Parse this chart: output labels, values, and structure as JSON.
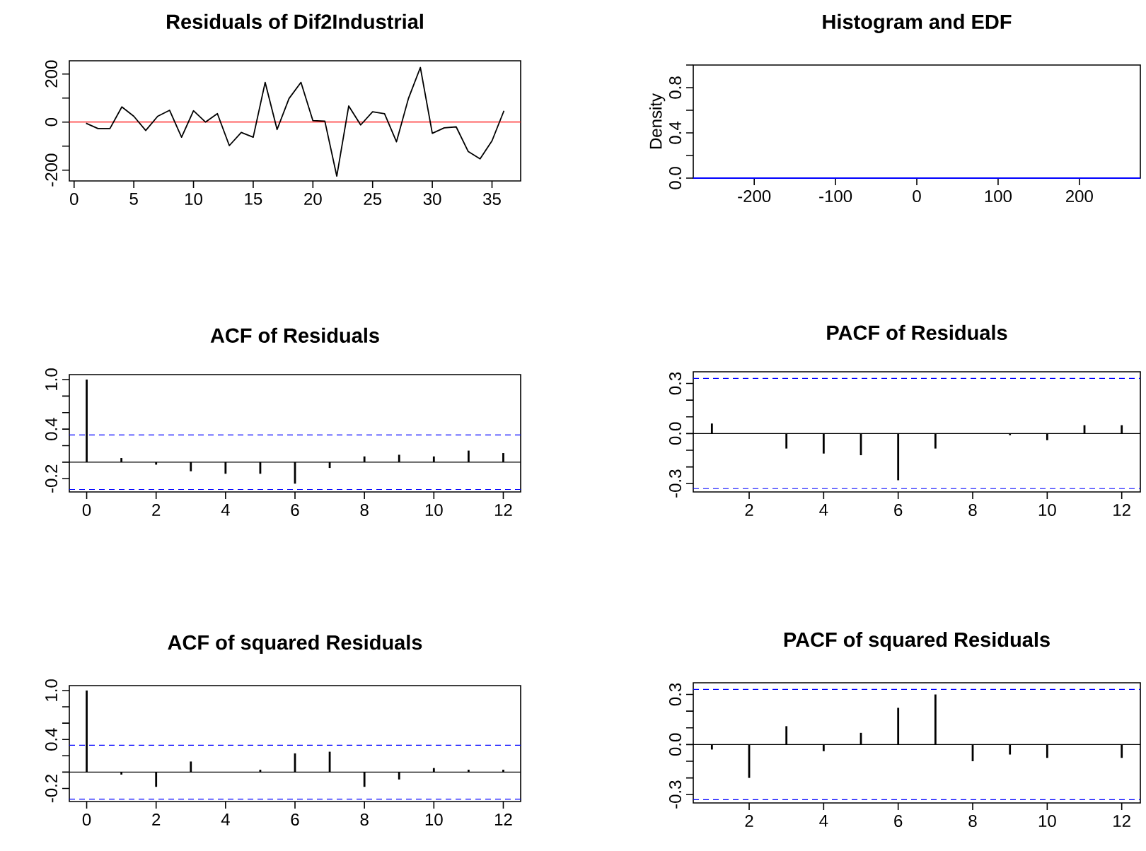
{
  "chart_data": [
    {
      "type": "line",
      "title": "Residuals of Dif2Industrial",
      "color": "#000000",
      "x": [
        1,
        2,
        3,
        4,
        5,
        6,
        7,
        8,
        9,
        10,
        11,
        12,
        13,
        14,
        15,
        16,
        17,
        18,
        19,
        20,
        21,
        22,
        23,
        24,
        25,
        26,
        27,
        28,
        29,
        30,
        31,
        32,
        33,
        34,
        35,
        36
      ],
      "values": [
        -5,
        -27,
        -27,
        63,
        24,
        -35,
        24,
        49,
        -63,
        47,
        0,
        35,
        -98,
        -43,
        -63,
        165,
        -31,
        98,
        165,
        6,
        4,
        -225,
        67,
        -12,
        43,
        35,
        -82,
        98,
        227,
        -47,
        -24,
        -20,
        -122,
        -153,
        -78,
        47
      ],
      "xlim": [
        -0.4,
        37.4
      ],
      "ylim": [
        -245,
        255
      ],
      "xticks": [
        0,
        5,
        10,
        15,
        20,
        25,
        30,
        35
      ],
      "yticks": [
        -200,
        {
          "value": -100,
          "label": null
        },
        0,
        {
          "value": 100,
          "label": null
        },
        200
      ],
      "ref_lines": [
        {
          "axis": "y",
          "value": 0,
          "color": "#ff0000",
          "line_style": "solid"
        }
      ]
    },
    {
      "type": "line",
      "title": "Histogram and EDF",
      "ylabel": "Density",
      "color": "#0000ff",
      "x": [
        -275,
        275
      ],
      "values": [
        0,
        0
      ],
      "xlim": [
        -275,
        275
      ],
      "ylim": [
        0,
        1.0
      ],
      "xticks": [
        -200,
        -100,
        0,
        100,
        200
      ],
      "yticks": [
        {
          "value": 0,
          "label": "0.0"
        },
        {
          "value": 0.2,
          "label": null
        },
        0.4,
        {
          "value": 0.6,
          "label": null
        },
        0.8,
        {
          "value": 1.0,
          "label": null
        }
      ]
    },
    {
      "type": "bar",
      "title": "ACF of Residuals",
      "color": "#000000",
      "x": [
        0,
        1,
        2,
        3,
        4,
        5,
        6,
        7,
        8,
        9,
        10,
        11,
        12
      ],
      "values": [
        1.0,
        0.05,
        -0.03,
        -0.11,
        -0.14,
        -0.14,
        -0.26,
        -0.07,
        0.07,
        0.09,
        0.07,
        0.14,
        0.11
      ],
      "xlim": [
        -0.5,
        12.5
      ],
      "ylim": [
        -0.36,
        1.06
      ],
      "xticks": [
        0,
        2,
        4,
        6,
        8,
        10,
        12
      ],
      "yticks": [
        -0.2,
        {
          "value": 0,
          "label": null
        },
        {
          "value": 0.2,
          "label": null
        },
        0.4,
        {
          "value": 0.6,
          "label": null
        },
        {
          "value": 0.8,
          "label": null
        },
        {
          "value": 1.0,
          "label": "1.0"
        }
      ],
      "ref_lines": [
        {
          "axis": "y",
          "value": 0,
          "color": "#000000",
          "line_style": "solid"
        },
        {
          "axis": "y",
          "value": 0.33,
          "color": "#0000ff",
          "line_style": "dashed"
        },
        {
          "axis": "y",
          "value": -0.33,
          "color": "#0000ff",
          "line_style": "dashed"
        }
      ]
    },
    {
      "type": "bar",
      "title": "PACF of Residuals",
      "color": "#000000",
      "x": [
        1,
        2,
        3,
        4,
        5,
        6,
        7,
        8,
        9,
        10,
        11,
        12
      ],
      "values": [
        0.06,
        null,
        -0.09,
        -0.12,
        -0.13,
        -0.28,
        -0.09,
        null,
        -0.01,
        -0.04,
        0.05,
        0.05
      ],
      "xlim": [
        0.5,
        12.5
      ],
      "ylim": [
        -0.35,
        0.37
      ],
      "xticks": [
        2,
        4,
        6,
        8,
        10,
        12
      ],
      "yticks": [
        -0.3,
        {
          "value": -0.2,
          "label": null
        },
        {
          "value": -0.1,
          "label": null
        },
        {
          "value": 0,
          "label": "0.0"
        },
        {
          "value": 0.1,
          "label": null
        },
        {
          "value": 0.2,
          "label": null
        },
        0.3
      ],
      "ref_lines": [
        {
          "axis": "y",
          "value": 0,
          "color": "#000000",
          "line_style": "solid"
        },
        {
          "axis": "y",
          "value": 0.33,
          "color": "#0000ff",
          "line_style": "dashed"
        },
        {
          "axis": "y",
          "value": -0.33,
          "color": "#0000ff",
          "line_style": "dashed"
        }
      ]
    },
    {
      "type": "bar",
      "title": "ACF of squared Residuals",
      "color": "#000000",
      "x": [
        0,
        1,
        2,
        3,
        4,
        5,
        6,
        7,
        8,
        9,
        10,
        11,
        12
      ],
      "values": [
        1.0,
        -0.03,
        -0.18,
        0.13,
        null,
        0.03,
        0.23,
        0.25,
        -0.18,
        -0.09,
        0.05,
        0.03,
        0.03
      ],
      "xlim": [
        -0.5,
        12.5
      ],
      "ylim": [
        -0.36,
        1.06
      ],
      "xticks": [
        0,
        2,
        4,
        6,
        8,
        10,
        12
      ],
      "yticks": [
        -0.2,
        {
          "value": 0,
          "label": null
        },
        {
          "value": 0.2,
          "label": null
        },
        0.4,
        {
          "value": 0.6,
          "label": null
        },
        {
          "value": 0.8,
          "label": null
        },
        {
          "value": 1.0,
          "label": "1.0"
        }
      ],
      "ref_lines": [
        {
          "axis": "y",
          "value": 0,
          "color": "#000000",
          "line_style": "solid"
        },
        {
          "axis": "y",
          "value": 0.33,
          "color": "#0000ff",
          "line_style": "dashed"
        },
        {
          "axis": "y",
          "value": -0.33,
          "color": "#0000ff",
          "line_style": "dashed"
        }
      ]
    },
    {
      "type": "bar",
      "title": "PACF of squared Residuals",
      "color": "#000000",
      "x": [
        1,
        2,
        3,
        4,
        5,
        6,
        7,
        8,
        9,
        10,
        11,
        12
      ],
      "values": [
        -0.03,
        -0.2,
        0.11,
        -0.04,
        0.07,
        0.22,
        0.3,
        -0.1,
        -0.06,
        -0.08,
        null,
        -0.08
      ],
      "xlim": [
        0.5,
        12.5
      ],
      "ylim": [
        -0.35,
        0.37
      ],
      "xticks": [
        2,
        4,
        6,
        8,
        10,
        12
      ],
      "yticks": [
        -0.3,
        {
          "value": -0.2,
          "label": null
        },
        {
          "value": -0.1,
          "label": null
        },
        {
          "value": 0,
          "label": "0.0"
        },
        {
          "value": 0.1,
          "label": null
        },
        {
          "value": 0.2,
          "label": null
        },
        0.3
      ],
      "ref_lines": [
        {
          "axis": "y",
          "value": 0,
          "color": "#000000",
          "line_style": "solid"
        },
        {
          "axis": "y",
          "value": 0.33,
          "color": "#0000ff",
          "line_style": "dashed"
        },
        {
          "axis": "y",
          "value": -0.33,
          "color": "#0000ff",
          "line_style": "dashed"
        }
      ]
    }
  ]
}
